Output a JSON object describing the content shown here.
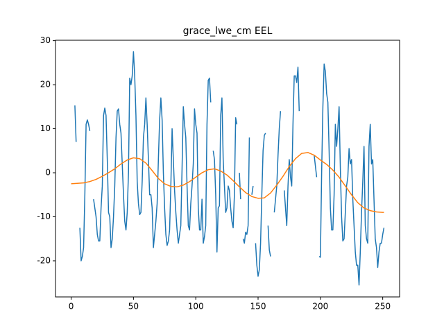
{
  "chart_data": {
    "type": "line",
    "title": "grace_lwe_cm EEL",
    "xlim": [
      -12.55,
      263.55
    ],
    "ylim": [
      -28.2,
      30.1
    ],
    "xticks": [
      0,
      50,
      100,
      150,
      200,
      250
    ],
    "yticks": [
      -20,
      -10,
      0,
      10,
      20,
      30
    ],
    "series": [
      {
        "color": "#1f77b4",
        "x": [
          3,
          4,
          5,
          6,
          7,
          8,
          9,
          10,
          11,
          12,
          13,
          14,
          15,
          16,
          17,
          18,
          19,
          20,
          21,
          22,
          23,
          24,
          25,
          26,
          27,
          28,
          29,
          30,
          31,
          32,
          33,
          34,
          35,
          36,
          37,
          38,
          39,
          40,
          41,
          42,
          43,
          44,
          45,
          46,
          47,
          48,
          49,
          50,
          51,
          52,
          53,
          54,
          55,
          56,
          57,
          58,
          59,
          60,
          61,
          62,
          63,
          64,
          65,
          66,
          67,
          68,
          69,
          70,
          71,
          72,
          73,
          74,
          75,
          76,
          77,
          78,
          79,
          80,
          81,
          82,
          83,
          84,
          85,
          86,
          87,
          88,
          89,
          90,
          91,
          92,
          93,
          94,
          95,
          96,
          97,
          98,
          99,
          100,
          101,
          102,
          103,
          104,
          105,
          106,
          107,
          108,
          109,
          110,
          111,
          112,
          113,
          114,
          115,
          116,
          117,
          118,
          119,
          120,
          121,
          122,
          123,
          124,
          125,
          126,
          127,
          128,
          129,
          130,
          131,
          132,
          133,
          134,
          135,
          136,
          137,
          138,
          139,
          140,
          141,
          142,
          143,
          144,
          145,
          146,
          147,
          148,
          149,
          150,
          151,
          152,
          153,
          154,
          155,
          156,
          157,
          158,
          159,
          160,
          161,
          162,
          163,
          164,
          165,
          166,
          167,
          168,
          169,
          170,
          171,
          172,
          173,
          174,
          175,
          176,
          177,
          178,
          179,
          180,
          181,
          182,
          183,
          184,
          185,
          186,
          187,
          188,
          189,
          190,
          191,
          192,
          193,
          194,
          195,
          196,
          197,
          198,
          199,
          200,
          201,
          202,
          203,
          204,
          205,
          206,
          207,
          208,
          209,
          210,
          211,
          212,
          213,
          214,
          215,
          216,
          217,
          218,
          219,
          220,
          221,
          222,
          223,
          224,
          225,
          226,
          227,
          228,
          229,
          230,
          231,
          232,
          233,
          234,
          235,
          236,
          237,
          238,
          239,
          240,
          241,
          242,
          243,
          244,
          245,
          246,
          247,
          248,
          249,
          250,
          251
        ],
        "values": [
          15.3,
          7,
          null,
          null,
          -12.5,
          -20,
          -19,
          -17,
          -5,
          11,
          12,
          11,
          9.5,
          null,
          null,
          -6,
          -8,
          -10,
          -14,
          -15.5,
          -15.5,
          -8,
          -3,
          13,
          14.7,
          13,
          3,
          -9,
          -10,
          -17,
          -15,
          -10,
          -3,
          8,
          14,
          14.5,
          11,
          9,
          2,
          -5,
          -11,
          -13,
          -9,
          0,
          21.5,
          20,
          22,
          27.5,
          22,
          13,
          -2,
          -7,
          -9.5,
          -9,
          -2,
          8,
          11,
          17,
          11,
          3,
          -5,
          -5,
          -8,
          -17,
          -14,
          -11,
          -7,
          3,
          12,
          17,
          12,
          0,
          -8,
          -14,
          -16.5,
          -15.5,
          -13,
          -3,
          10,
          3,
          -4,
          -9,
          -13,
          -16,
          -14,
          -12,
          1,
          15,
          11,
          8,
          -3,
          -12,
          -13,
          -7,
          -3,
          2,
          14.5,
          11,
          9,
          -8,
          -13,
          -13,
          -6,
          -16,
          -14.5,
          -12,
          11,
          21,
          21.5,
          16,
          null,
          5,
          3,
          -5,
          -18,
          -8,
          -7.5,
          13,
          17,
          3,
          -3,
          -9,
          -8,
          -3,
          -4,
          -8,
          -11,
          -12.5,
          -5,
          12.5,
          11,
          null,
          0,
          -6,
          null,
          -15,
          -16,
          -13.5,
          -14,
          -12,
          8,
          null,
          -5,
          -3,
          null,
          -16,
          -21,
          -23.5,
          -22,
          -16,
          -5,
          5,
          8.5,
          9,
          null,
          -12,
          -17.5,
          -19,
          null,
          null,
          -9,
          -6,
          -3,
          4,
          10,
          14,
          null,
          null,
          -4,
          -8,
          -12,
          -3,
          3,
          -1,
          -3,
          11,
          22,
          22,
          20.5,
          24,
          14,
          null,
          null,
          null,
          null,
          null,
          null,
          null,
          null,
          null,
          null,
          null,
          4,
          1.5,
          -1,
          null,
          -19,
          -19.2,
          0,
          15,
          24.7,
          23,
          18,
          16,
          5,
          -8,
          -13,
          -13,
          -5,
          11,
          6,
          10,
          15,
          1,
          -10,
          -15.5,
          -15,
          -9,
          -3,
          -1,
          5.5,
          2,
          3,
          -6,
          -12,
          -18,
          -21,
          -21,
          -25.5,
          -18,
          -9,
          -2,
          6,
          -12,
          -15,
          -16,
          6,
          11,
          2,
          3,
          -6,
          -15,
          -17,
          -21.5,
          -18,
          -16,
          -16,
          -14,
          -12.5
        ]
      },
      {
        "color": "#ff7f0e",
        "x": [
          0,
          5,
          10,
          15,
          20,
          25,
          30,
          35,
          40,
          45,
          50,
          55,
          60,
          65,
          70,
          75,
          80,
          85,
          90,
          95,
          100,
          105,
          110,
          115,
          120,
          125,
          130,
          135,
          140,
          145,
          150,
          155,
          160,
          165,
          170,
          175,
          180,
          185,
          190,
          195,
          200,
          205,
          210,
          215,
          220,
          225,
          230,
          235,
          240,
          245,
          250,
          251
        ],
        "values": [
          -2.5,
          -2.4,
          -2.3,
          -2.0,
          -1.5,
          -0.8,
          0,
          0.9,
          2,
          2.9,
          3.4,
          3.2,
          2.2,
          0.5,
          -1.3,
          -2.5,
          -3.1,
          -3.2,
          -2.8,
          -2,
          -1,
          0,
          0.7,
          0.9,
          0.4,
          -0.5,
          -1.8,
          -3.2,
          -4.5,
          -5.4,
          -5.8,
          -5.7,
          -4.6,
          -2.8,
          -0.8,
          1.4,
          3.2,
          4.4,
          4.6,
          4,
          2.9,
          1.9,
          0.6,
          -1,
          -3,
          -5,
          -6.8,
          -8,
          -8.6,
          -8.9,
          -9,
          -9
        ]
      }
    ]
  }
}
